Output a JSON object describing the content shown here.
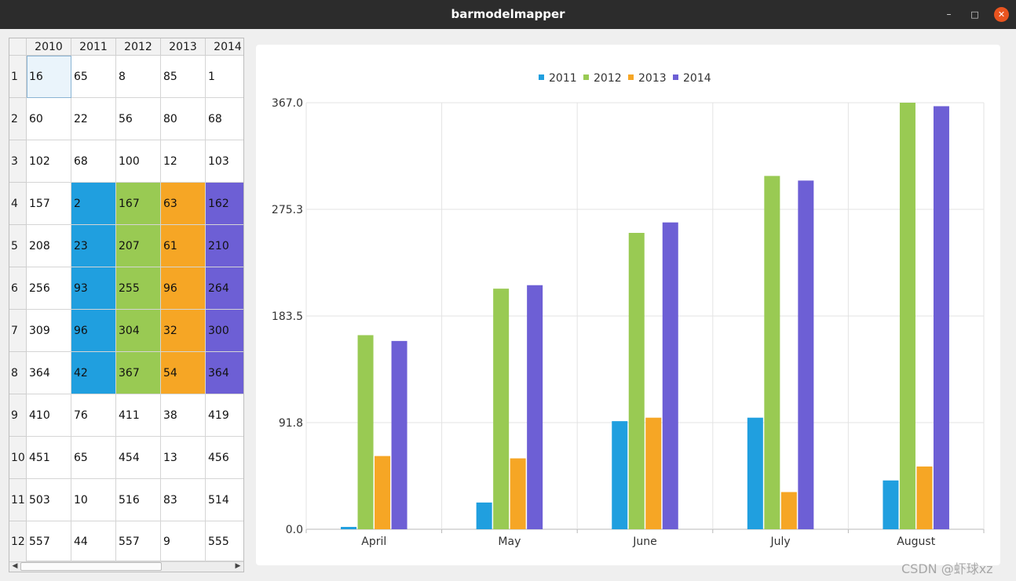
{
  "window": {
    "title": "barmodelmapper"
  },
  "table": {
    "columns": [
      "2010",
      "2011",
      "2012",
      "2013",
      "2014"
    ],
    "row_labels": [
      "1",
      "2",
      "3",
      "4",
      "5",
      "6",
      "7",
      "8",
      "9",
      "10",
      "11",
      "12"
    ],
    "rows": [
      [
        "16",
        "65",
        "8",
        "85",
        "1"
      ],
      [
        "60",
        "22",
        "56",
        "80",
        "68"
      ],
      [
        "102",
        "68",
        "100",
        "12",
        "103"
      ],
      [
        "157",
        "2",
        "167",
        "63",
        "162"
      ],
      [
        "208",
        "23",
        "207",
        "61",
        "210"
      ],
      [
        "256",
        "93",
        "255",
        "96",
        "264"
      ],
      [
        "309",
        "96",
        "304",
        "32",
        "300"
      ],
      [
        "364",
        "42",
        "367",
        "54",
        "364"
      ],
      [
        "410",
        "76",
        "411",
        "38",
        "419"
      ],
      [
        "451",
        "65",
        "454",
        "13",
        "456"
      ],
      [
        "503",
        "10",
        "516",
        "83",
        "514"
      ],
      [
        "557",
        "44",
        "557",
        "9",
        "555"
      ]
    ],
    "mapped_column_colors": [
      "",
      "#209fdf",
      "#99ca53",
      "#f6a625",
      "#6d5fd5"
    ],
    "mapped_rows": [
      3,
      4,
      5,
      6,
      7
    ],
    "selected_cell": [
      0,
      0
    ]
  },
  "chart_data": {
    "type": "bar",
    "categories": [
      "April",
      "May",
      "June",
      "July",
      "August"
    ],
    "series": [
      {
        "name": "2011",
        "color": "#209fdf",
        "values": [
          2,
          23,
          93,
          96,
          42
        ]
      },
      {
        "name": "2012",
        "color": "#99ca53",
        "values": [
          167,
          207,
          255,
          304,
          367
        ]
      },
      {
        "name": "2013",
        "color": "#f6a625",
        "values": [
          63,
          61,
          96,
          32,
          54
        ]
      },
      {
        "name": "2014",
        "color": "#6d5fd5",
        "values": [
          162,
          210,
          264,
          300,
          364
        ]
      }
    ],
    "ylim": [
      0,
      367
    ],
    "yticks": [
      "0.0",
      "91.8",
      "183.5",
      "275.3",
      "367.0"
    ],
    "legend_position": "top",
    "grid": true
  },
  "watermark": "CSDN @虾球xz"
}
